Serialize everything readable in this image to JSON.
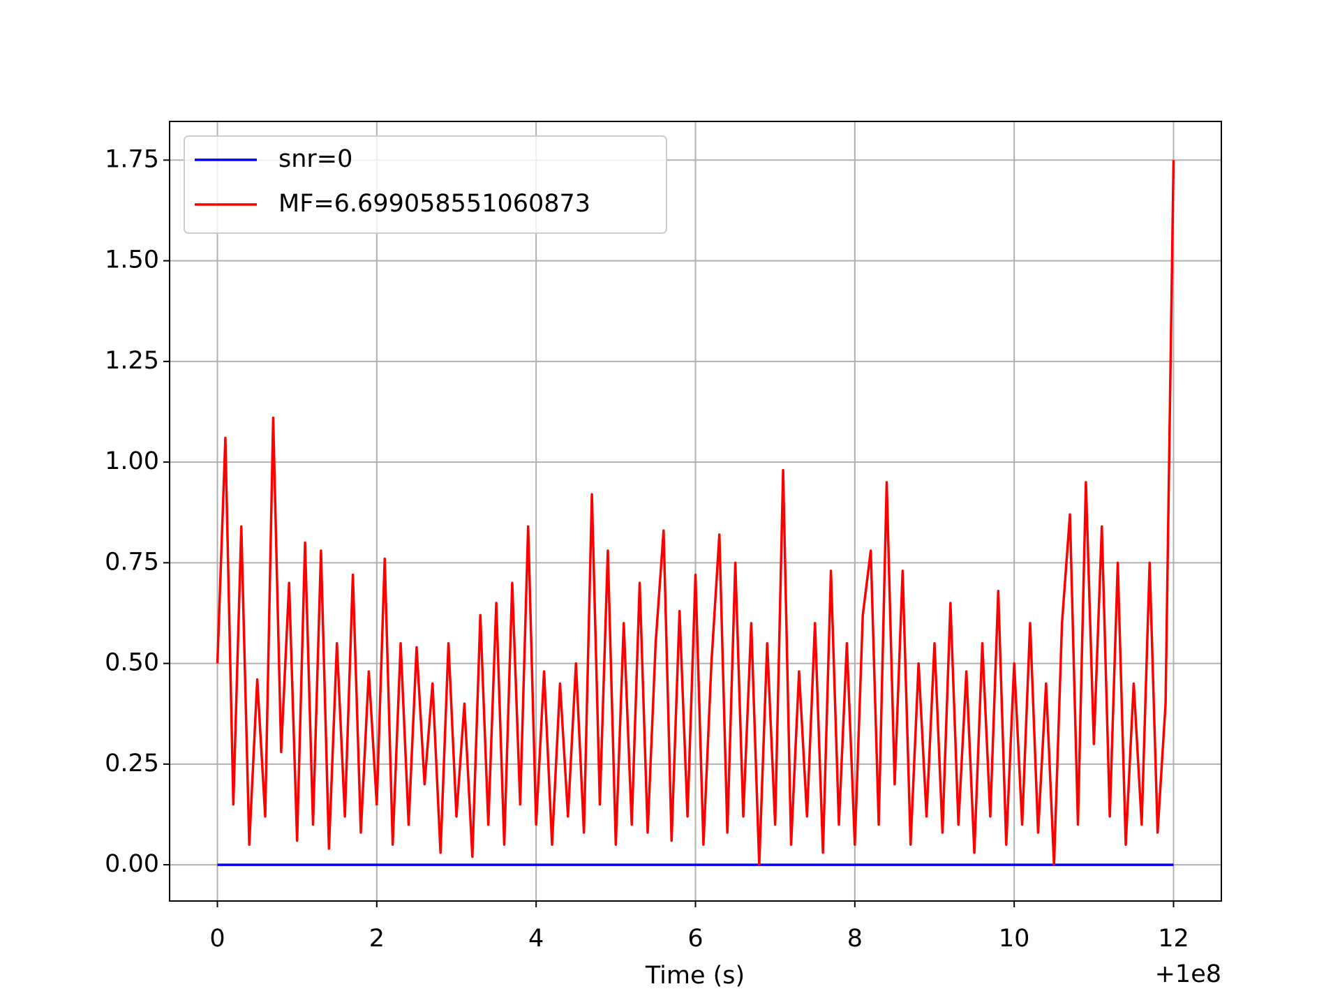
{
  "chart_data": {
    "type": "line",
    "xlabel": "Time (s)",
    "x_offset_label": "+1e8",
    "xlim": [
      -0.6,
      12.6
    ],
    "ylim": [
      -0.09,
      1.846
    ],
    "xticks": [
      0,
      2,
      4,
      6,
      8,
      10,
      12
    ],
    "yticks": [
      {
        "value": 0,
        "label": "0.00"
      },
      {
        "value": 0.25,
        "label": "0.25"
      },
      {
        "value": 0.5,
        "label": "0.50"
      },
      {
        "value": 0.75,
        "label": "0.75"
      },
      {
        "value": 1,
        "label": "1.00"
      },
      {
        "value": 1.25,
        "label": "1.25"
      },
      {
        "value": 1.5,
        "label": "1.50"
      },
      {
        "value": 1.75,
        "label": "1.75"
      }
    ],
    "grid": true,
    "legend_position": "upper-left",
    "series": [
      {
        "name": "snr=0",
        "color": "#0000ff",
        "x": [
          0,
          12
        ],
        "values": [
          0,
          0
        ]
      },
      {
        "name": "MF=6.699058551060873",
        "color": "#ff0000",
        "x": [
          0,
          0.1,
          0.2,
          0.3,
          0.4,
          0.5,
          0.6,
          0.7,
          0.8,
          0.9,
          1,
          1.1,
          1.2,
          1.3,
          1.4,
          1.5,
          1.6,
          1.7,
          1.8,
          1.9,
          2,
          2.1,
          2.2,
          2.3,
          2.4,
          2.5,
          2.6,
          2.7,
          2.8,
          2.9,
          3,
          3.1,
          3.2,
          3.3,
          3.4,
          3.5,
          3.6,
          3.7,
          3.8,
          3.9,
          4,
          4.1,
          4.2,
          4.3,
          4.4,
          4.5,
          4.6,
          4.7,
          4.8,
          4.9,
          5,
          5.1,
          5.2,
          5.3,
          5.4,
          5.5,
          5.6,
          5.7,
          5.8,
          5.9,
          6,
          6.1,
          6.2,
          6.3,
          6.4,
          6.5,
          6.6,
          6.7,
          6.8,
          6.9,
          7,
          7.1,
          7.2,
          7.3,
          7.4,
          7.5,
          7.6,
          7.7,
          7.8,
          7.9,
          8,
          8.1,
          8.2,
          8.3,
          8.4,
          8.5,
          8.6,
          8.7,
          8.8,
          8.9,
          9,
          9.1,
          9.2,
          9.3,
          9.4,
          9.5,
          9.6,
          9.7,
          9.8,
          9.9,
          10,
          10.1,
          10.2,
          10.3,
          10.4,
          10.5,
          10.6,
          10.7,
          10.8,
          10.9,
          11,
          11.1,
          11.2,
          11.3,
          11.4,
          11.5,
          11.6,
          11.7,
          11.8,
          11.9,
          12
        ],
        "values": [
          0.5,
          1.06,
          0.15,
          0.84,
          0.05,
          0.46,
          0.12,
          1.11,
          0.28,
          0.7,
          0.06,
          0.8,
          0.1,
          0.78,
          0.04,
          0.55,
          0.12,
          0.72,
          0.08,
          0.48,
          0.15,
          0.76,
          0.05,
          0.55,
          0.1,
          0.54,
          0.2,
          0.45,
          0.03,
          0.55,
          0.12,
          0.4,
          0.02,
          0.62,
          0.1,
          0.65,
          0.05,
          0.7,
          0.15,
          0.84,
          0.1,
          0.48,
          0.05,
          0.45,
          0.12,
          0.5,
          0.08,
          0.92,
          0.15,
          0.78,
          0.05,
          0.6,
          0.1,
          0.7,
          0.08,
          0.55,
          0.83,
          0.06,
          0.63,
          0.12,
          0.72,
          0.05,
          0.5,
          0.82,
          0.08,
          0.75,
          0.12,
          0.6,
          0,
          0.55,
          0.1,
          0.98,
          0.05,
          0.48,
          0.12,
          0.6,
          0.03,
          0.73,
          0.1,
          0.55,
          0.05,
          0.62,
          0.78,
          0.1,
          0.95,
          0.2,
          0.73,
          0.05,
          0.5,
          0.12,
          0.55,
          0.08,
          0.65,
          0.1,
          0.48,
          0.03,
          0.55,
          0.12,
          0.68,
          0.05,
          0.5,
          0.1,
          0.6,
          0.08,
          0.45,
          0,
          0.6,
          0.87,
          0.1,
          0.95,
          0.3,
          0.84,
          0.12,
          0.75,
          0.05,
          0.45,
          0.1,
          0.75,
          0.08,
          0.4,
          1.75
        ]
      }
    ]
  }
}
